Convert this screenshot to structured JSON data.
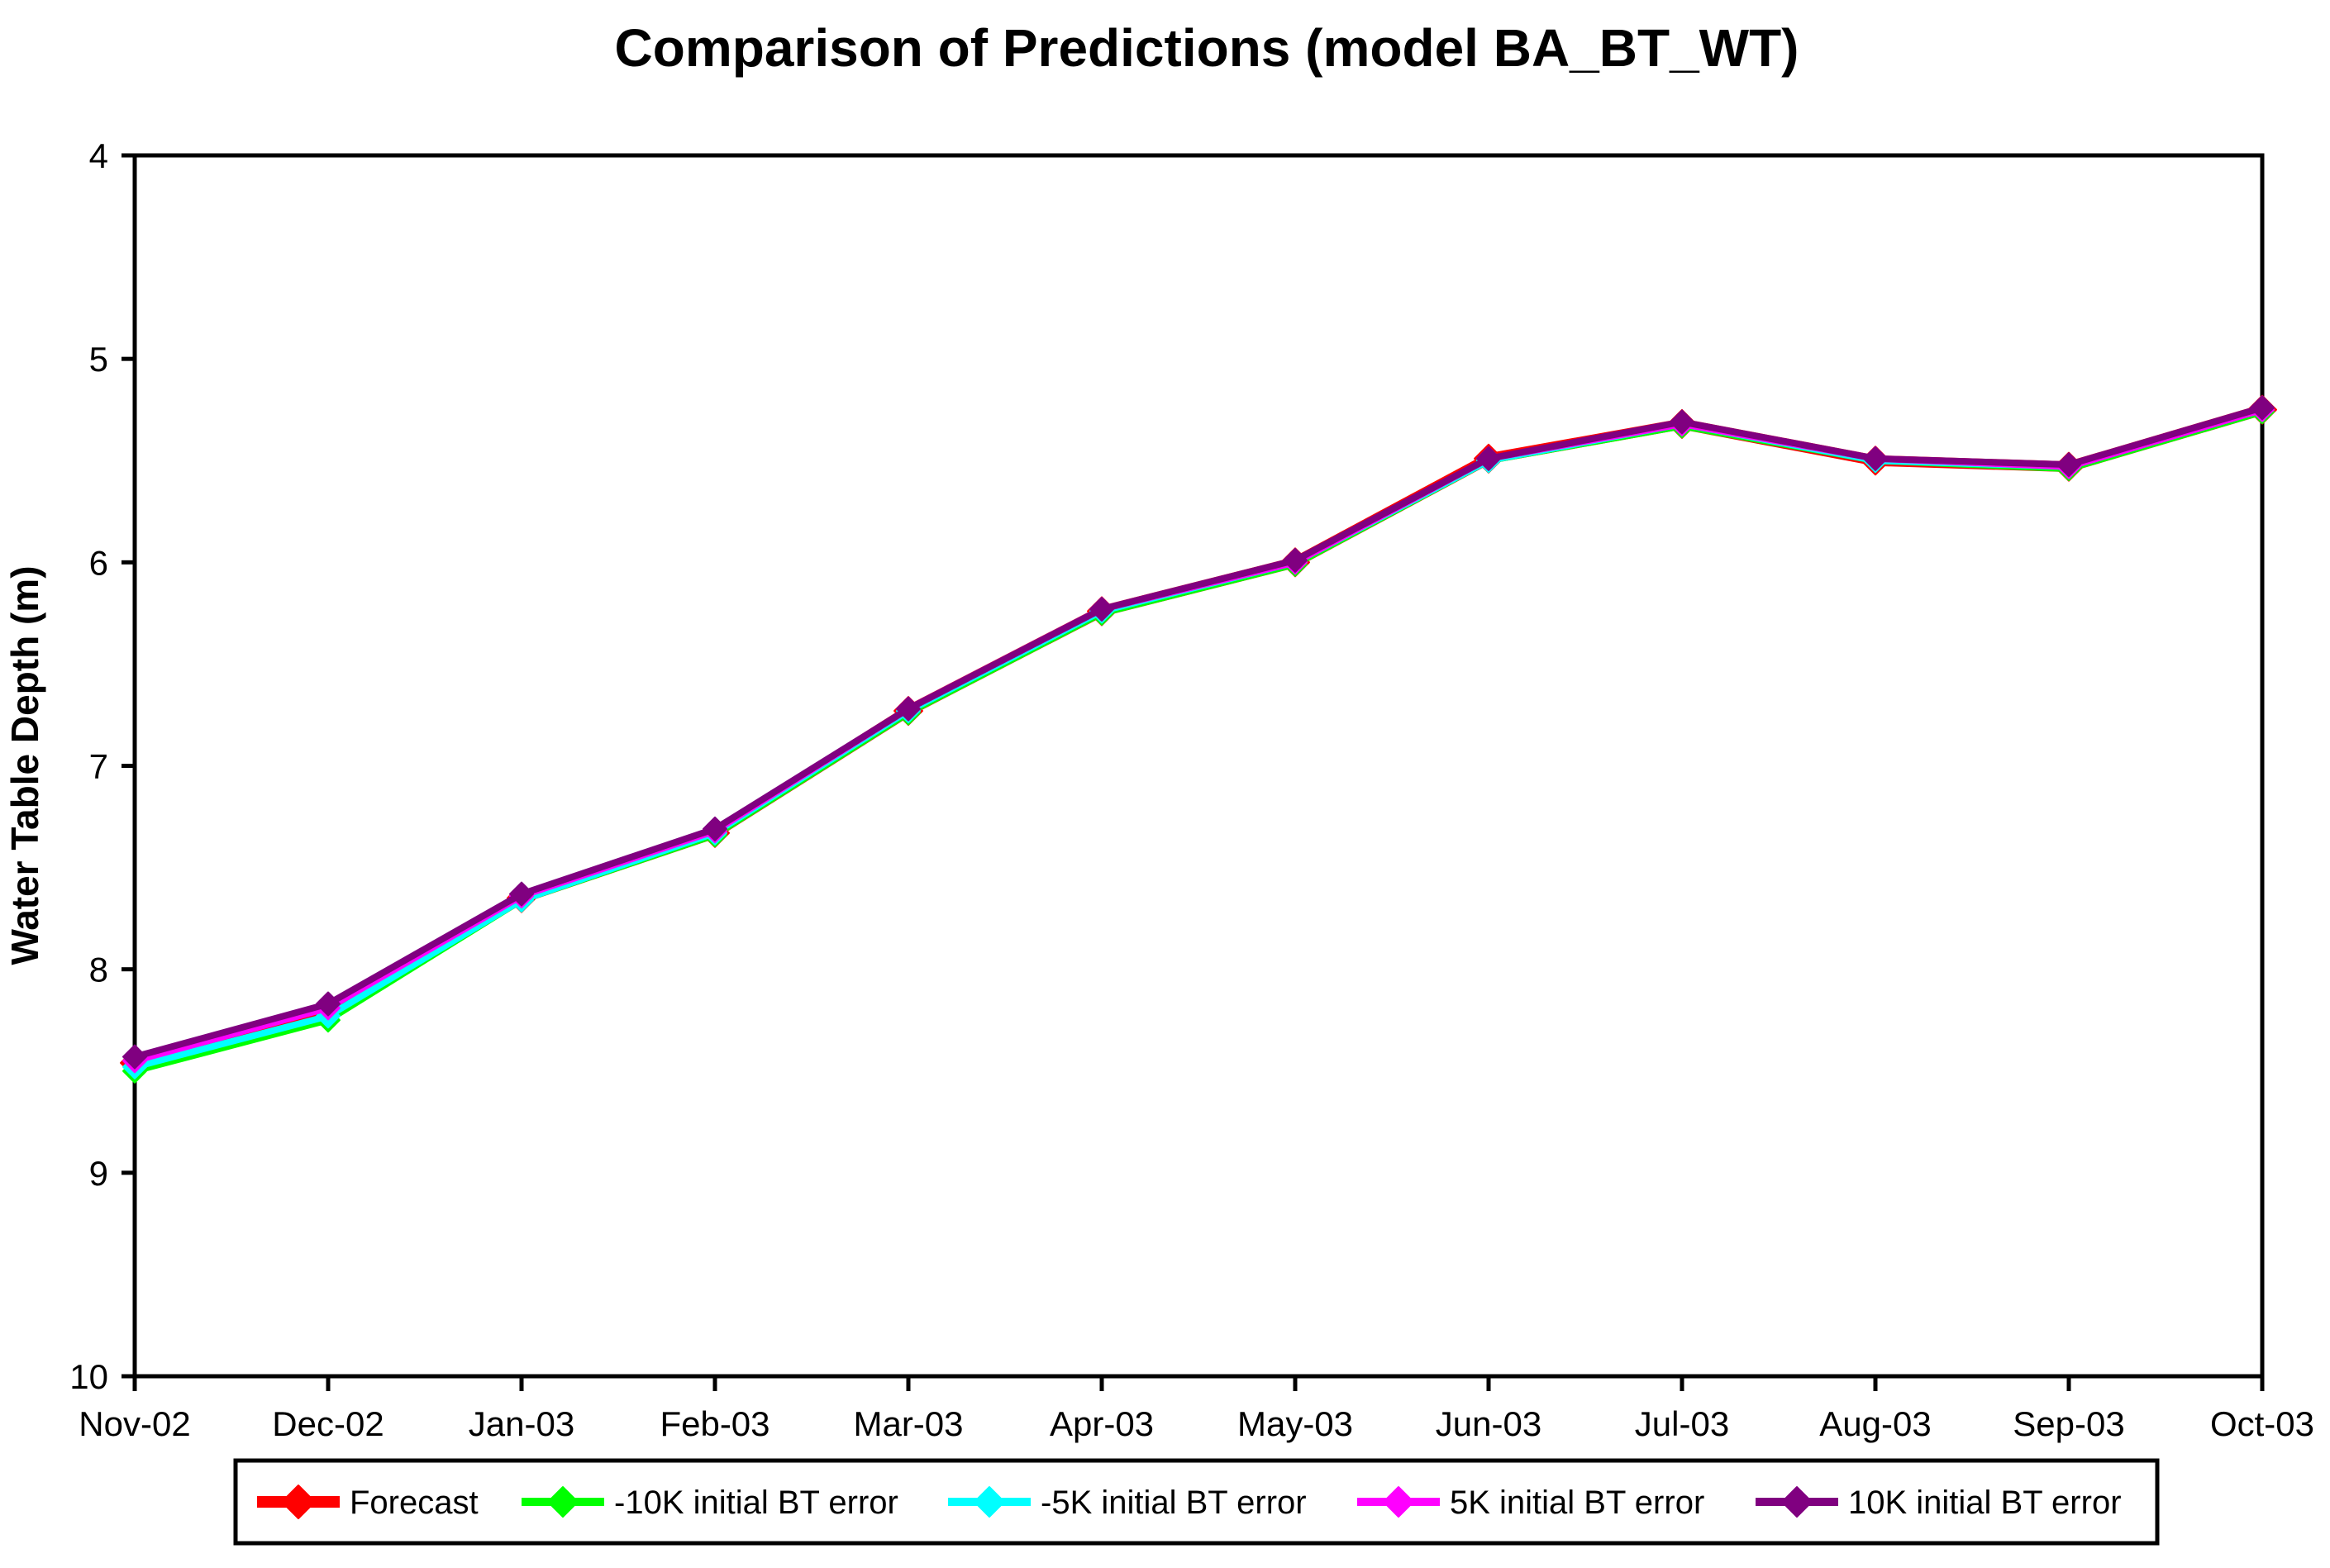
{
  "page": {
    "background": "#FFFFFF"
  },
  "chart_data": {
    "type": "line",
    "title": "Comparison of Predictions (model BA_BT_WT)",
    "xlabel": "",
    "ylabel": "Water Table Depth (m)",
    "y_axis": {
      "min": 4,
      "max": 10,
      "reversed": true,
      "ticks": [
        4,
        5,
        6,
        7,
        8,
        9,
        10
      ]
    },
    "categories": [
      "Nov-02",
      "Dec-02",
      "Jan-03",
      "Feb-03",
      "Mar-03",
      "Apr-03",
      "May-03",
      "Jun-03",
      "Jul-03",
      "Aug-03",
      "Sep-03",
      "Oct-03"
    ],
    "grid": false,
    "legend_position": "bottom",
    "marker": "diamond",
    "series": [
      {
        "name": "Forecast",
        "color": "#FF0000",
        "marker": "diamond",
        "values": [
          8.46,
          8.21,
          7.65,
          7.33,
          6.73,
          6.24,
          6.0,
          5.49,
          5.32,
          5.5,
          5.53,
          5.25
        ]
      },
      {
        "name": "-10K initial BT error",
        "color": "#00FF00",
        "marker": "diamond",
        "values": [
          8.5,
          8.25,
          7.66,
          7.34,
          6.74,
          6.25,
          6.01,
          5.5,
          5.33,
          5.5,
          5.54,
          5.26
        ]
      },
      {
        "name": "-5K initial BT error",
        "color": "#00FFFF",
        "marker": "diamond",
        "values": [
          8.48,
          8.23,
          7.66,
          7.33,
          6.73,
          6.24,
          6.0,
          5.5,
          5.32,
          5.5,
          5.53,
          5.25
        ]
      },
      {
        "name": "5K initial BT error",
        "color": "#FF00FF",
        "marker": "diamond",
        "values": [
          8.45,
          8.19,
          7.64,
          7.32,
          6.72,
          6.23,
          6.0,
          5.49,
          5.32,
          5.49,
          5.53,
          5.25
        ]
      },
      {
        "name": "10K initial BT error",
        "color": "#800080",
        "marker": "diamond",
        "values": [
          8.43,
          8.17,
          7.63,
          7.31,
          6.72,
          6.23,
          5.99,
          5.49,
          5.31,
          5.49,
          5.52,
          5.24
        ]
      }
    ]
  }
}
